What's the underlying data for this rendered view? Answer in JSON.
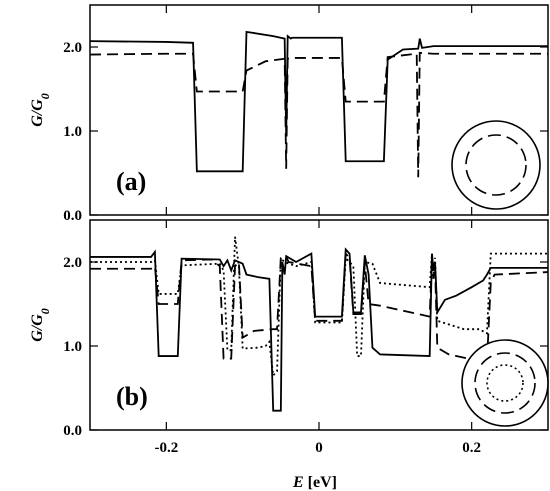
{
  "chart_data": [
    {
      "type": "line",
      "panel_label": "(a)",
      "ylabel": "G/G",
      "ylabel_sub": "0",
      "xlim": [
        -0.3,
        0.3
      ],
      "ylim": [
        0.0,
        2.5
      ],
      "yticks": [
        "0.0",
        "1.0",
        "2.0"
      ],
      "ytick_values": [
        0.0,
        1.0,
        2.0
      ],
      "xticks": [],
      "inset": "circle with inner dashed circle",
      "series": [
        {
          "style": "solid",
          "points": [
            [
              -0.3,
              2.07
            ],
            [
              -0.2,
              2.06
            ],
            [
              -0.165,
              2.05
            ],
            [
              -0.16,
              0.52
            ],
            [
              -0.1,
              0.52
            ],
            [
              -0.095,
              2.18
            ],
            [
              -0.06,
              2.13
            ],
            [
              -0.045,
              2.1
            ],
            [
              -0.043,
              0.95
            ],
            [
              -0.041,
              2.13
            ],
            [
              -0.037,
              2.1
            ],
            [
              -0.035,
              2.11
            ],
            [
              0.03,
              2.11
            ],
            [
              0.035,
              0.64
            ],
            [
              0.085,
              0.64
            ],
            [
              0.09,
              1.85
            ],
            [
              0.11,
              1.97
            ],
            [
              0.13,
              1.98
            ],
            [
              0.132,
              2.1
            ],
            [
              0.135,
              1.99
            ],
            [
              0.15,
              2.01
            ],
            [
              0.3,
              2.01
            ]
          ]
        },
        {
          "style": "dashed",
          "points": [
            [
              -0.3,
              1.91
            ],
            [
              -0.2,
              1.92
            ],
            [
              -0.165,
              1.92
            ],
            [
              -0.16,
              1.47
            ],
            [
              -0.1,
              1.47
            ],
            [
              -0.095,
              1.72
            ],
            [
              -0.07,
              1.83
            ],
            [
              -0.045,
              1.86
            ],
            [
              -0.043,
              0.55
            ],
            [
              -0.041,
              1.86
            ],
            [
              -0.035,
              1.87
            ],
            [
              0.03,
              1.87
            ],
            [
              0.035,
              1.35
            ],
            [
              0.085,
              1.35
            ],
            [
              0.09,
              1.88
            ],
            [
              0.128,
              1.92
            ],
            [
              0.13,
              0.45
            ],
            [
              0.132,
              1.93
            ],
            [
              0.15,
              1.92
            ],
            [
              0.3,
              1.92
            ]
          ]
        }
      ]
    },
    {
      "type": "line",
      "panel_label": "(b)",
      "ylabel": "G/G",
      "ylabel_sub": "0",
      "xlabel": "E",
      "xlabel_unit": "[eV]",
      "xlim": [
        -0.3,
        0.3
      ],
      "ylim": [
        0.0,
        2.5
      ],
      "yticks": [
        "0.0",
        "1.0",
        "2.0"
      ],
      "ytick_values": [
        0.0,
        1.0,
        2.0
      ],
      "xticks": [
        "-0.2",
        "0",
        "0.2"
      ],
      "xtick_values": [
        -0.2,
        0.0,
        0.2
      ],
      "inset": "circle with inner dashed circle and dotted circle",
      "series": [
        {
          "style": "solid",
          "points": [
            [
              -0.3,
              2.06
            ],
            [
              -0.22,
              2.06
            ],
            [
              -0.215,
              2.12
            ],
            [
              -0.21,
              0.88
            ],
            [
              -0.185,
              0.88
            ],
            [
              -0.18,
              2.04
            ],
            [
              -0.13,
              2.03
            ],
            [
              -0.125,
              1.95
            ],
            [
              -0.12,
              2.02
            ],
            [
              -0.115,
              1.9
            ],
            [
              -0.11,
              2.02
            ],
            [
              -0.1,
              1.98
            ],
            [
              -0.095,
              1.85
            ],
            [
              -0.08,
              1.82
            ],
            [
              -0.065,
              1.8
            ],
            [
              -0.06,
              0.23
            ],
            [
              -0.05,
              0.23
            ],
            [
              -0.048,
              2.0
            ],
            [
              -0.045,
              1.85
            ],
            [
              -0.043,
              2.07
            ],
            [
              -0.03,
              2.0
            ],
            [
              -0.01,
              2.1
            ],
            [
              -0.005,
              1.35
            ],
            [
              0.03,
              1.35
            ],
            [
              0.035,
              2.15
            ],
            [
              0.04,
              2.1
            ],
            [
              0.045,
              1.4
            ],
            [
              0.055,
              1.4
            ],
            [
              0.06,
              2.08
            ],
            [
              0.065,
              1.85
            ],
            [
              0.07,
              0.98
            ],
            [
              0.08,
              0.9
            ],
            [
              0.145,
              0.88
            ],
            [
              0.148,
              2.1
            ],
            [
              0.15,
              1.9
            ],
            [
              0.152,
              2.0
            ],
            [
              0.155,
              1.4
            ],
            [
              0.165,
              1.55
            ],
            [
              0.18,
              1.6
            ],
            [
              0.2,
              1.7
            ],
            [
              0.215,
              1.78
            ],
            [
              0.22,
              1.85
            ],
            [
              0.225,
              1.93
            ],
            [
              0.3,
              1.93
            ]
          ]
        },
        {
          "style": "dashed",
          "points": [
            [
              -0.3,
              1.92
            ],
            [
              -0.22,
              1.92
            ],
            [
              -0.215,
              1.95
            ],
            [
              -0.21,
              1.5
            ],
            [
              -0.185,
              1.5
            ],
            [
              -0.18,
              2.02
            ],
            [
              -0.14,
              2.03
            ],
            [
              -0.13,
              1.95
            ],
            [
              -0.125,
              0.85
            ],
            [
              -0.115,
              0.85
            ],
            [
              -0.11,
              1.95
            ],
            [
              -0.105,
              2.0
            ],
            [
              -0.1,
              1.1
            ],
            [
              -0.085,
              1.18
            ],
            [
              -0.06,
              1.2
            ],
            [
              -0.055,
              1.2
            ],
            [
              -0.05,
              2.05
            ],
            [
              -0.043,
              2.07
            ],
            [
              -0.04,
              2.0
            ],
            [
              -0.01,
              1.95
            ],
            [
              -0.005,
              1.3
            ],
            [
              0.03,
              1.3
            ],
            [
              0.035,
              2.1
            ],
            [
              0.04,
              2.05
            ],
            [
              0.045,
              1.38
            ],
            [
              0.055,
              1.38
            ],
            [
              0.06,
              1.98
            ],
            [
              0.065,
              1.5
            ],
            [
              0.08,
              1.48
            ],
            [
              0.145,
              1.35
            ],
            [
              0.148,
              2.05
            ],
            [
              0.15,
              1.8
            ],
            [
              0.152,
              1.95
            ],
            [
              0.155,
              0.98
            ],
            [
              0.17,
              0.9
            ],
            [
              0.22,
              0.8
            ],
            [
              0.225,
              1.75
            ],
            [
              0.23,
              1.85
            ],
            [
              0.3,
              1.88
            ]
          ]
        },
        {
          "style": "dotted",
          "points": [
            [
              -0.3,
              2.0
            ],
            [
              -0.22,
              2.0
            ],
            [
              -0.215,
              2.02
            ],
            [
              -0.21,
              1.62
            ],
            [
              -0.185,
              1.62
            ],
            [
              -0.18,
              1.96
            ],
            [
              -0.13,
              1.98
            ],
            [
              -0.125,
              1.9
            ],
            [
              -0.12,
              0.95
            ],
            [
              -0.115,
              0.95
            ],
            [
              -0.11,
              2.3
            ],
            [
              -0.105,
              1.95
            ],
            [
              -0.1,
              0.97
            ],
            [
              -0.08,
              0.98
            ],
            [
              -0.07,
              1.0
            ],
            [
              -0.065,
              1.05
            ],
            [
              -0.06,
              0.65
            ],
            [
              -0.055,
              0.7
            ],
            [
              -0.05,
              2.04
            ],
            [
              -0.045,
              2.0
            ],
            [
              -0.03,
              1.95
            ],
            [
              -0.01,
              2.0
            ],
            [
              -0.005,
              1.28
            ],
            [
              0.03,
              1.28
            ],
            [
              0.035,
              2.05
            ],
            [
              0.045,
              1.95
            ],
            [
              0.05,
              0.88
            ],
            [
              0.055,
              0.88
            ],
            [
              0.06,
              2.0
            ],
            [
              0.07,
              1.98
            ],
            [
              0.08,
              1.75
            ],
            [
              0.145,
              1.7
            ],
            [
              0.148,
              2.1
            ],
            [
              0.15,
              1.8
            ],
            [
              0.152,
              2.05
            ],
            [
              0.155,
              1.3
            ],
            [
              0.19,
              1.2
            ],
            [
              0.21,
              1.2
            ],
            [
              0.22,
              1.15
            ],
            [
              0.225,
              2.1
            ],
            [
              0.3,
              2.1
            ]
          ]
        }
      ]
    }
  ]
}
